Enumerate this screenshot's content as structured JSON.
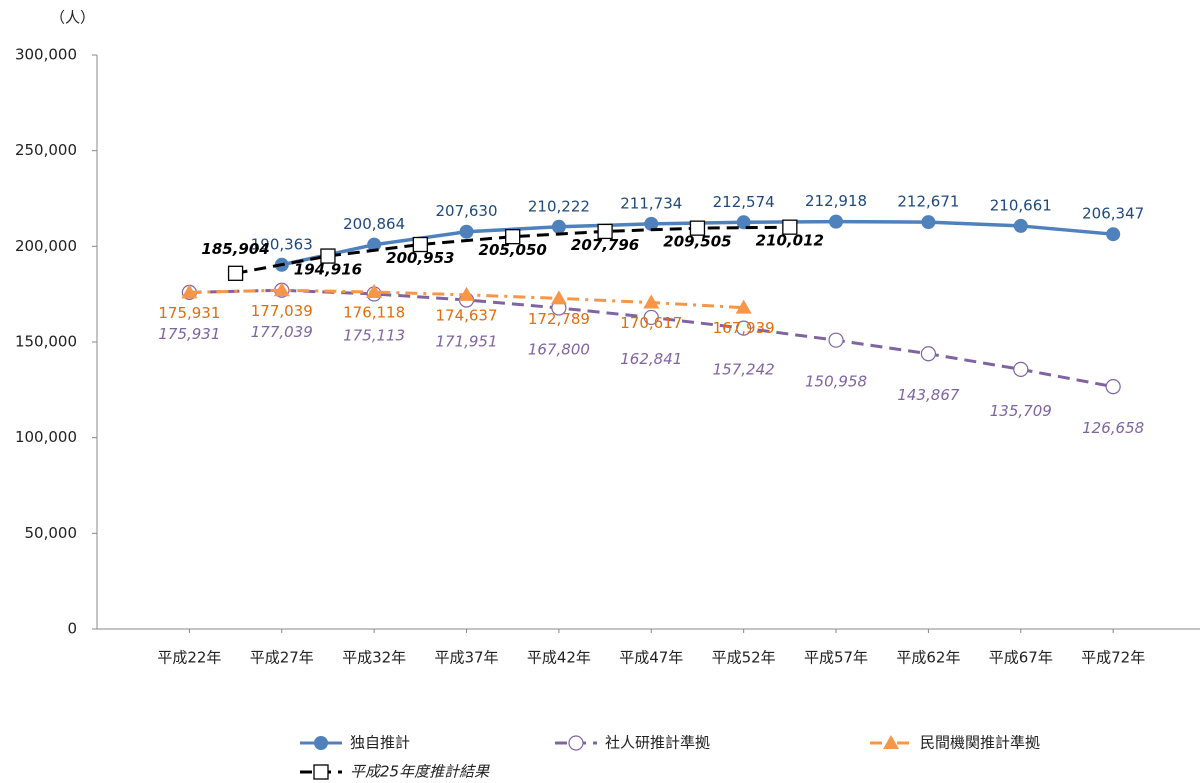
{
  "chart_data": {
    "type": "line",
    "y_label": "（人）",
    "xlim": [
      17,
      76.7
    ],
    "xticks": [
      {
        "value": 22,
        "label": "平成22年"
      },
      {
        "value": 27,
        "label": "平成27年"
      },
      {
        "value": 32,
        "label": "平成32年"
      },
      {
        "value": 37,
        "label": "平成37年"
      },
      {
        "value": 42,
        "label": "平成42年"
      },
      {
        "value": 47,
        "label": "平成47年"
      },
      {
        "value": 52,
        "label": "平成52年"
      },
      {
        "value": 57,
        "label": "平成57年"
      },
      {
        "value": 62,
        "label": "平成62年"
      },
      {
        "value": 67,
        "label": "平成67年"
      },
      {
        "value": 72,
        "label": "平成72年"
      }
    ],
    "ylim": [
      0,
      300000
    ],
    "yticks": [
      0,
      {
        "value": 50000,
        "label": "50,000"
      },
      {
        "value": 100000,
        "label": "100,000"
      },
      {
        "value": 150000,
        "label": "150,000"
      },
      {
        "value": 200000,
        "label": "200,000"
      },
      {
        "value": 250000,
        "label": "250,000"
      },
      {
        "value": 300000,
        "label": "300,000"
      }
    ],
    "grid": false,
    "series": [
      {
        "name": "独自推計",
        "color": "#4f81bd",
        "label_color": "#1f497d",
        "dash": "solid",
        "marker": "circle",
        "x": [
          27,
          32,
          37,
          42,
          47,
          52,
          57,
          62,
          67,
          72
        ],
        "values": [
          190363,
          200864,
          207630,
          210222,
          211734,
          212574,
          212918,
          212671,
          210661,
          206347
        ],
        "value_labels": [
          "190,363",
          "200,864",
          "207,630",
          "210,222",
          "211,734",
          "212,574",
          "212,918",
          "212,671",
          "210,661",
          "206,347"
        ]
      },
      {
        "name": "社人研推計準拠",
        "color": "#8064a2",
        "label_color": "#8064a2",
        "dash": "dashed",
        "marker": "open-circle",
        "x": [
          22,
          27,
          32,
          37,
          42,
          47,
          52,
          57,
          62,
          67,
          72
        ],
        "values": [
          175931,
          177039,
          175113,
          171951,
          167800,
          162841,
          157242,
          150958,
          143867,
          135709,
          126658
        ],
        "value_labels": [
          "175,931",
          "177,039",
          "175,113",
          "171,951",
          "167,800",
          "162,841",
          "157,242",
          "150,958",
          "143,867",
          "135,709",
          "126,658"
        ]
      },
      {
        "name": "民間機関推計準拠",
        "color": "#f79646",
        "label_color": "#e46c0a",
        "dash": "dash-dot",
        "marker": "triangle",
        "x": [
          22,
          27,
          32,
          37,
          42,
          47,
          52
        ],
        "values": [
          175931,
          177039,
          176118,
          174637,
          172789,
          170617,
          167939
        ],
        "value_labels": [
          "175,931",
          "177,039",
          "176,118",
          "174,637",
          "172,789",
          "170,617",
          "167,939"
        ]
      },
      {
        "name": "平成25年度推計結果",
        "color": "#000000",
        "label_color": "#000000",
        "dash": "dashed",
        "marker": "open-square",
        "x": [
          24.5,
          29.5,
          34.5,
          39.5,
          44.5,
          49.5,
          54.5
        ],
        "values": [
          185904,
          194916,
          200953,
          205050,
          207796,
          209505,
          210012
        ],
        "value_labels": [
          "185,904",
          "194,916",
          "200,953",
          "205,050",
          "207,796",
          "209,505",
          "210,012"
        ]
      }
    ]
  }
}
